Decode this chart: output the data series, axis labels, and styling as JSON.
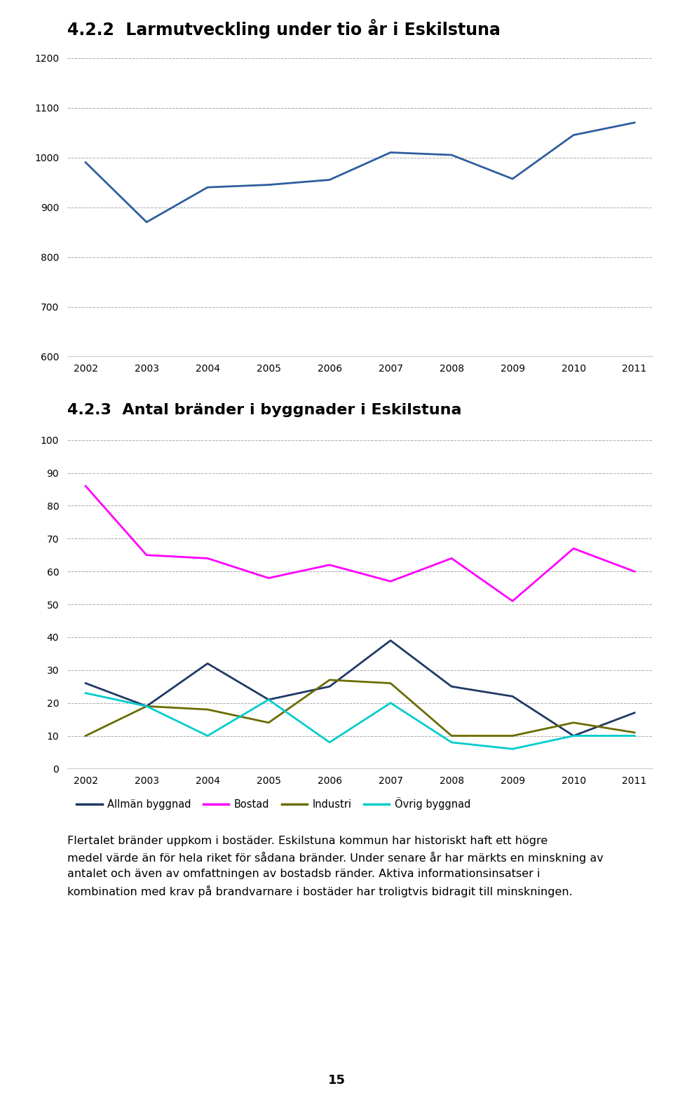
{
  "title1": "4.2.2  Larmutveckling under tio år i Eskilstuna",
  "title2": "4.2.3  Antal bränder i byggnader i Eskilstuna",
  "years": [
    2002,
    2003,
    2004,
    2005,
    2006,
    2007,
    2008,
    2009,
    2010,
    2011
  ],
  "chart1_data": [
    990,
    870,
    940,
    945,
    955,
    1010,
    1005,
    957,
    1045,
    1070
  ],
  "chart1_ylim": [
    600,
    1200
  ],
  "chart1_yticks": [
    600,
    700,
    800,
    900,
    1000,
    1100,
    1200
  ],
  "chart1_color": "#2E5E9E",
  "chart2_allman": [
    26,
    19,
    32,
    21,
    25,
    39,
    25,
    22,
    10,
    17
  ],
  "chart2_bostad": [
    86,
    65,
    64,
    58,
    62,
    57,
    64,
    51,
    67,
    60
  ],
  "chart2_industri": [
    10,
    19,
    18,
    14,
    27,
    26,
    10,
    10,
    14,
    11
  ],
  "chart2_ovrig": [
    23,
    19,
    10,
    21,
    8,
    20,
    8,
    6,
    10,
    10
  ],
  "chart2_ylim": [
    0,
    100
  ],
  "chart2_yticks": [
    0,
    10,
    20,
    30,
    40,
    50,
    60,
    70,
    80,
    90,
    100
  ],
  "color_allman": "#1F3864",
  "color_bostad": "#FF00FF",
  "color_industri": "#6B6B00",
  "color_ovrig": "#00CCCC",
  "legend_labels": [
    "Allmän byggnad",
    "Bostad",
    "Industri",
    "Övrig byggnad"
  ],
  "body_text_line1": "Flertalet bränder uppkom i bostäder. Eskilstuna kommun har historiskt haft ett högre",
  "body_text_line2": "medel värde än för hela riket för sådana bränder. Under senare år har märkts en minskning av",
  "body_text_line3": "antalet och även av omfattningen av bostadsb ränder. Aktiva informationsinsatser i",
  "body_text_line4": "kombination med krav på brandvarnare i bostäder har troligtvis bidragit till minskningen.",
  "page_number": "15",
  "background_color": "#FFFFFF",
  "grid_color": "#AAAAAA",
  "grid_style": "--",
  "line_width": 2.0
}
